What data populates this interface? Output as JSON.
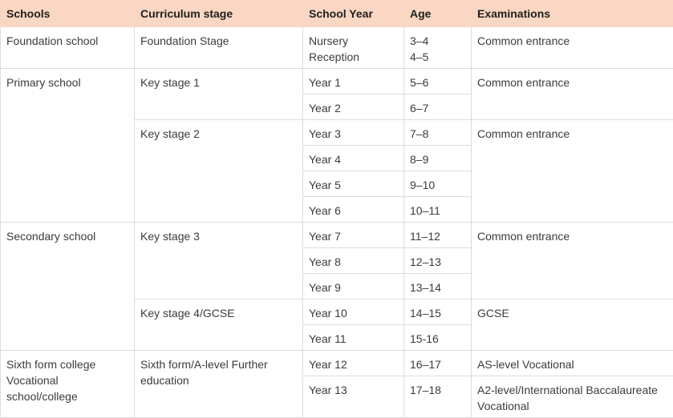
{
  "headers": {
    "schools": "Schools",
    "curriculum": "Curriculum stage",
    "year": "School Year",
    "age": "Age",
    "exams": "Examinations"
  },
  "rows": {
    "foundation": {
      "school": "Foundation school",
      "stage": "Foundation Stage",
      "years": [
        "Nursery",
        "Reception"
      ],
      "ages": [
        "3–4",
        "4–5"
      ],
      "exam": "Common entrance"
    },
    "primary": {
      "school": "Primary school",
      "ks1": {
        "stage": "Key stage 1",
        "exam": "Common entrance",
        "items": [
          {
            "year": "Year 1",
            "age": "5–6"
          },
          {
            "year": "Year 2",
            "age": "6–7"
          }
        ]
      },
      "ks2": {
        "stage": "Key stage 2",
        "exam": "Common entrance",
        "items": [
          {
            "year": "Year 3",
            "age": "7–8"
          },
          {
            "year": "Year 4",
            "age": "8–9"
          },
          {
            "year": "Year 5",
            "age": "9–10"
          },
          {
            "year": "Year 6",
            "age": "10–11"
          }
        ]
      }
    },
    "secondary": {
      "school": "Secondary school",
      "ks3": {
        "stage": "Key stage 3",
        "exam": "Common entrance",
        "items": [
          {
            "year": "Year 7",
            "age": "11–12"
          },
          {
            "year": "Year 8",
            "age": "12–13"
          },
          {
            "year": "Year 9",
            "age": "13–14"
          }
        ]
      },
      "ks4": {
        "stage": "Key stage 4/GCSE",
        "exam": "GCSE",
        "items": [
          {
            "year": "Year 10",
            "age": "14–15"
          },
          {
            "year": "Year 11",
            "age": "15-16"
          }
        ]
      }
    },
    "sixth": {
      "school_lines": [
        "Sixth form college",
        "Vocational",
        "school/college"
      ],
      "stage_lines": [
        "Sixth form/A-level Further",
        "education"
      ],
      "items": [
        {
          "year": "Year 12",
          "age": "16–17",
          "exam_lines": [
            "AS-level Vocational"
          ]
        },
        {
          "year": "Year 13",
          "age": "17–18",
          "exam_lines": [
            "A2-level/International Baccalaureate",
            "Vocational"
          ]
        }
      ]
    }
  }
}
